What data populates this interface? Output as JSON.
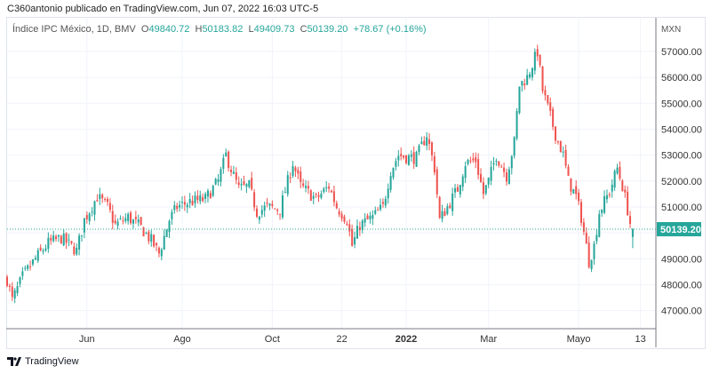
{
  "header": {
    "published": "C360antonio publicado en TradingView.com, Jun 07, 2022 16:03 UTC-5"
  },
  "legend": {
    "symbol": "Índice IPC México, 1D, BMV",
    "o_label": "O",
    "o": "49840.72",
    "h_label": "H",
    "h": "50183.82",
    "l_label": "L",
    "l": "49409.73",
    "c_label": "C",
    "c": "50139.20",
    "change": "+78.67 (+0.16%)"
  },
  "brand": {
    "name": "TradingView"
  },
  "colors": {
    "up": "#26a69a",
    "down": "#ef5350",
    "grid": "#f0f3fa",
    "axis": "#787b86"
  },
  "chart_data": {
    "type": "candlestick",
    "title": "Índice IPC México, 1D, BMV",
    "currency": "MXN",
    "ylim": [
      46300,
      58300
    ],
    "xlim": [
      0,
      252
    ],
    "y_ticks": [
      47000,
      48000,
      49000,
      50000,
      51000,
      52000,
      53000,
      54000,
      55000,
      56000,
      57000
    ],
    "y_tick_labels": [
      "47000.00",
      "48000.00",
      "49000.00",
      "",
      "51000.00",
      "52000.00",
      "53000.00",
      "54000.00",
      "55000.00",
      "56000.00",
      "57000.00"
    ],
    "x_ticks": [
      {
        "day": 31,
        "label": "Jun"
      },
      {
        "day": 68,
        "label": "Ago"
      },
      {
        "day": 103,
        "label": "Oct"
      },
      {
        "day": 130,
        "label": "22"
      },
      {
        "day": 155,
        "label": "2022"
      },
      {
        "day": 187,
        "label": "Mar"
      },
      {
        "day": 222,
        "label": "Mayo"
      },
      {
        "day": 246,
        "label": "13"
      }
    ],
    "last_price": 50139.2,
    "last_price_label": "50139.20",
    "close_path": [
      [
        0,
        48200
      ],
      [
        2,
        47400
      ],
      [
        6,
        48300
      ],
      [
        11,
        49000
      ],
      [
        16,
        49600
      ],
      [
        21,
        49800
      ],
      [
        27,
        49300
      ],
      [
        30,
        50500
      ],
      [
        35,
        51400
      ],
      [
        39,
        51000
      ],
      [
        42,
        50300
      ],
      [
        47,
        50600
      ],
      [
        52,
        50200
      ],
      [
        56,
        49700
      ],
      [
        59,
        49200
      ],
      [
        63,
        50500
      ],
      [
        66,
        51000
      ],
      [
        71,
        51200
      ],
      [
        77,
        51300
      ],
      [
        82,
        52000
      ],
      [
        85,
        53000
      ],
      [
        88,
        52200
      ],
      [
        90,
        51700
      ],
      [
        94,
        51800
      ],
      [
        97,
        50800
      ],
      [
        101,
        51000
      ],
      [
        106,
        50900
      ],
      [
        111,
        52700
      ],
      [
        114,
        51800
      ],
      [
        120,
        51300
      ],
      [
        125,
        51800
      ],
      [
        128,
        51000
      ],
      [
        132,
        50500
      ],
      [
        134,
        49500
      ],
      [
        137,
        50300
      ],
      [
        142,
        50600
      ],
      [
        146,
        51000
      ],
      [
        149,
        52400
      ],
      [
        152,
        53000
      ],
      [
        156,
        52900
      ],
      [
        159,
        52900
      ],
      [
        163,
        53800
      ],
      [
        166,
        52500
      ],
      [
        168,
        50500
      ],
      [
        171,
        51000
      ],
      [
        175,
        51700
      ],
      [
        178,
        52700
      ],
      [
        182,
        52800
      ],
      [
        185,
        51500
      ],
      [
        187,
        52000
      ],
      [
        190,
        53000
      ],
      [
        194,
        52200
      ],
      [
        197,
        53500
      ],
      [
        199,
        55700
      ],
      [
        202,
        56000
      ],
      [
        206,
        57000
      ],
      [
        208,
        55500
      ],
      [
        213,
        53800
      ],
      [
        216,
        53000
      ],
      [
        218,
        52000
      ],
      [
        221,
        51400
      ],
      [
        223,
        50600
      ],
      [
        226,
        48900
      ],
      [
        228,
        49500
      ],
      [
        230,
        50800
      ],
      [
        234,
        51600
      ],
      [
        237,
        52500
      ],
      [
        239,
        51800
      ],
      [
        241,
        50900
      ],
      [
        243,
        49840.72
      ]
    ],
    "last_candle": {
      "open": 49840.72,
      "high": 50183.82,
      "low": 49409.73,
      "close": 50139.2
    }
  }
}
